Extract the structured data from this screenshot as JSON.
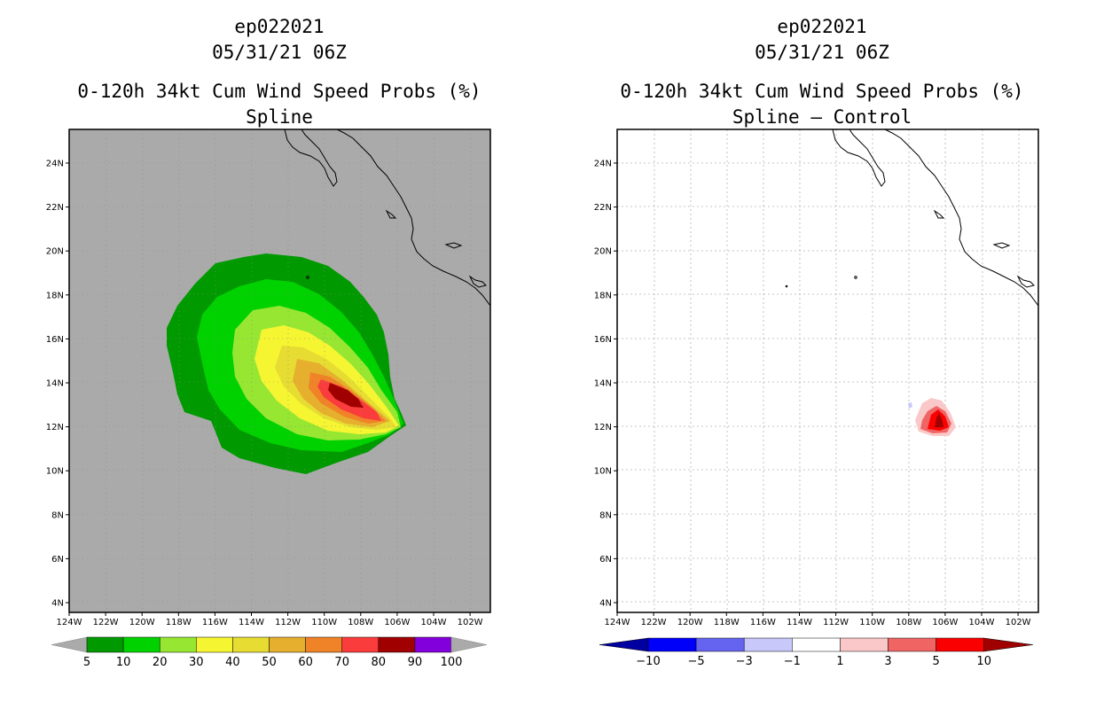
{
  "left_panel": {
    "title_lines": [
      "ep022021",
      "05/31/21 06Z",
      "0-120h 34kt Cum Wind Speed Probs (%)",
      "Spline"
    ],
    "colorbar": {
      "labels": [
        "5",
        "10",
        "20",
        "30",
        "40",
        "50",
        "60",
        "70",
        "80",
        "90",
        "100"
      ],
      "colors": [
        "#009a00",
        "#00d200",
        "#96e632",
        "#f5f532",
        "#e6dc32",
        "#e6af2d",
        "#f08228",
        "#fa3c3c",
        "#a00000",
        "#8200dc"
      ],
      "end_color": "#aaaaaa"
    },
    "background_color": "#aaaaaa"
  },
  "right_panel": {
    "title_lines": [
      "ep022021",
      "05/31/21 06Z",
      "0-120h 34kt Cum Wind Speed Probs (%)",
      "Spline – Control"
    ],
    "colorbar": {
      "labels": [
        "−10",
        "−5",
        "−3",
        "−1",
        "1",
        "3",
        "5",
        "10"
      ],
      "colors": [
        "#0000fa",
        "#6464f0",
        "#c8c8fa",
        "#ffffff",
        "#fac8c8",
        "#f06464",
        "#fa0000"
      ],
      "low_end_color": "#0000a0",
      "high_end_color": "#a00000"
    }
  },
  "axes": {
    "lat_labels": [
      "24N",
      "22N",
      "20N",
      "18N",
      "16N",
      "14N",
      "12N",
      "10N",
      "8N",
      "6N",
      "4N"
    ],
    "lon_labels": [
      "124W",
      "122W",
      "120W",
      "118W",
      "116W",
      "114W",
      "112W",
      "110W",
      "108W",
      "106W",
      "104W",
      "102W"
    ]
  }
}
